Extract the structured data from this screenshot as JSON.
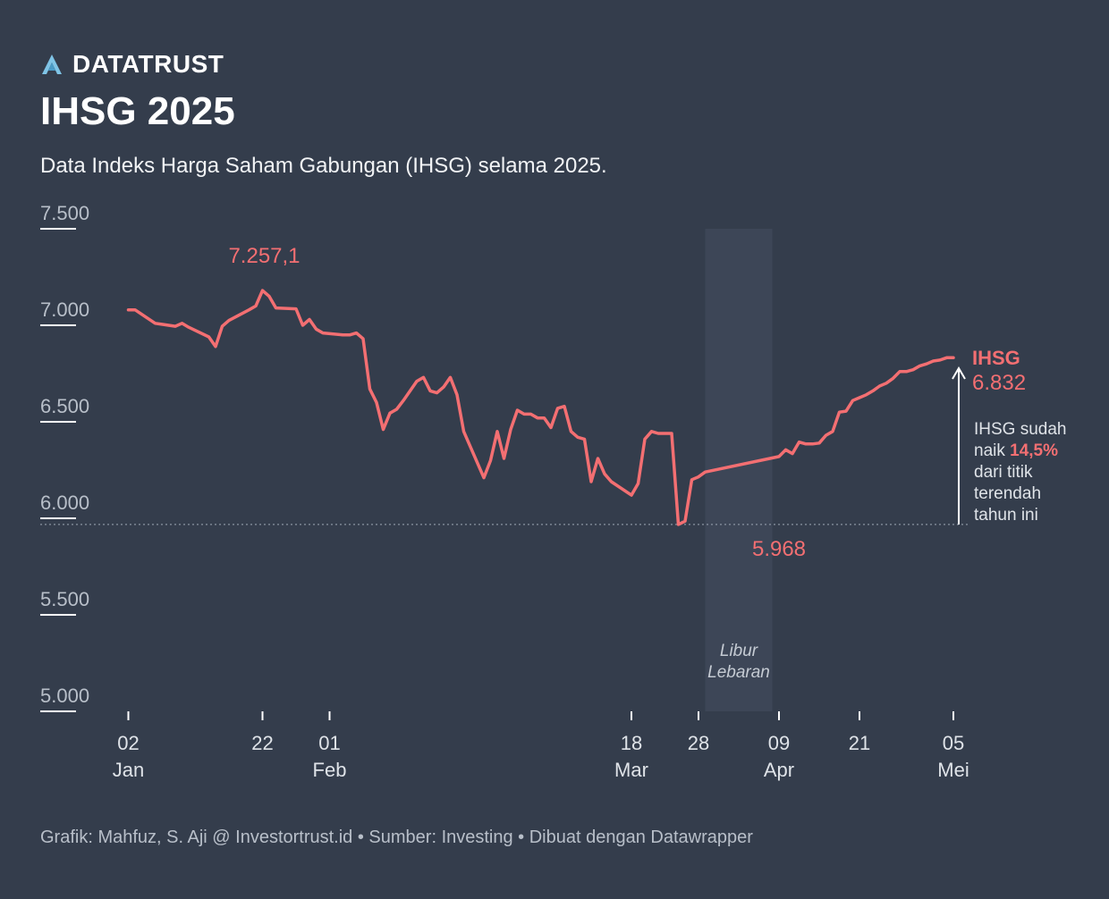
{
  "brand": {
    "name": "DATATRUST"
  },
  "title": "IHSG 2025",
  "subtitle": "Data Indeks Harga Saham Gabungan (IHSG) selama 2025.",
  "footer": "Grafik: Mahfuz, S. Aji @ Investortrust.id • Sumber: Investing • Dibuat dengan Datawrapper",
  "colors": {
    "background": "#343d4c",
    "line": "#f36f72",
    "shade": "#3d4657",
    "muted": "#b8bfc9"
  },
  "chart_data": {
    "type": "line",
    "title": "IHSG 2025",
    "xlabel": "",
    "ylabel": "",
    "ylim": [
      5000,
      7500
    ],
    "xlim": [
      1,
      125
    ],
    "y_ticks": [
      {
        "value": 7500,
        "label": "7.500"
      },
      {
        "value": 7000,
        "label": "7.000"
      },
      {
        "value": 6500,
        "label": "6.500"
      },
      {
        "value": 6000,
        "label": "6.000"
      },
      {
        "value": 5500,
        "label": "5.500"
      },
      {
        "value": 5000,
        "label": "5.000"
      }
    ],
    "x_ticks": [
      {
        "day": 2,
        "day_label": "02",
        "month_label": "Jan"
      },
      {
        "day": 22,
        "day_label": "22",
        "month_label": ""
      },
      {
        "day": 32,
        "day_label": "01",
        "month_label": "Feb"
      },
      {
        "day": 77,
        "day_label": "18",
        "month_label": "Mar"
      },
      {
        "day": 87,
        "day_label": "28",
        "month_label": ""
      },
      {
        "day": 99,
        "day_label": "09",
        "month_label": "Apr"
      },
      {
        "day": 111,
        "day_label": "21",
        "month_label": ""
      },
      {
        "day": 125,
        "day_label": "05",
        "month_label": "Mei"
      }
    ],
    "series": [
      {
        "name": "IHSG",
        "x": [
          2,
          3,
          6,
          7,
          8,
          9,
          10,
          11,
          14,
          15,
          16,
          17,
          20,
          21,
          22,
          23,
          24,
          27,
          28,
          29,
          30,
          31,
          34,
          35,
          36,
          37,
          38,
          39,
          40,
          41,
          42,
          43,
          45,
          46,
          47,
          48,
          49,
          50,
          51,
          52,
          55,
          56,
          57,
          58,
          59,
          60,
          61,
          62,
          63,
          64,
          65,
          66,
          67,
          68,
          69,
          70,
          71,
          72,
          73,
          74,
          77,
          78,
          79,
          80,
          81,
          82,
          83,
          84,
          85,
          86,
          87,
          88,
          99,
          100,
          101,
          102,
          103,
          104,
          105,
          106,
          107,
          108,
          109,
          110,
          111,
          112,
          113,
          114,
          115,
          116,
          117,
          118,
          119,
          120,
          121,
          122,
          123,
          124,
          125
        ],
        "values": [
          7080,
          7080,
          7010,
          7005,
          7000,
          6995,
          7010,
          6990,
          6940,
          6890,
          6995,
          7025,
          7080,
          7100,
          7180,
          7150,
          7090,
          7085,
          7000,
          7030,
          6980,
          6960,
          6950,
          6950,
          6960,
          6930,
          6670,
          6600,
          6460,
          6545,
          6565,
          6610,
          6710,
          6730,
          6660,
          6650,
          6680,
          6730,
          6640,
          6450,
          6210,
          6300,
          6450,
          6310,
          6460,
          6560,
          6540,
          6540,
          6520,
          6520,
          6470,
          6570,
          6580,
          6450,
          6420,
          6410,
          6190,
          6310,
          6230,
          6190,
          6120,
          6180,
          6410,
          6450,
          6440,
          6440,
          6440,
          5968,
          5985,
          6200,
          6215,
          6240,
          6320,
          6355,
          6335,
          6395,
          6385,
          6385,
          6390,
          6430,
          6450,
          6550,
          6555,
          6610,
          6625,
          6640,
          6660,
          6685,
          6700,
          6725,
          6760,
          6760,
          6770,
          6790,
          6800,
          6815,
          6820,
          6832,
          6832
        ]
      }
    ],
    "shaded_region": {
      "x_start": 88,
      "x_end": 98,
      "label_line1": "Libur",
      "label_line2": "Lebaran"
    },
    "reference_line": {
      "value": 5968,
      "style": "dotted"
    },
    "annotations": {
      "peak": {
        "x": 22,
        "value": 7257.1,
        "label": "7.257,1"
      },
      "low": {
        "x": 99,
        "value": 5968,
        "label": "5.968"
      },
      "end": {
        "x": 125,
        "value": 6832,
        "name_label": "IHSG",
        "value_label": "6.832"
      },
      "note": {
        "line1": "IHSG sudah",
        "line2_prefix": "naik ",
        "line2_highlight": "14,5%",
        "line3": "dari titik",
        "line4": "terendah",
        "line5": "tahun ini"
      }
    }
  }
}
